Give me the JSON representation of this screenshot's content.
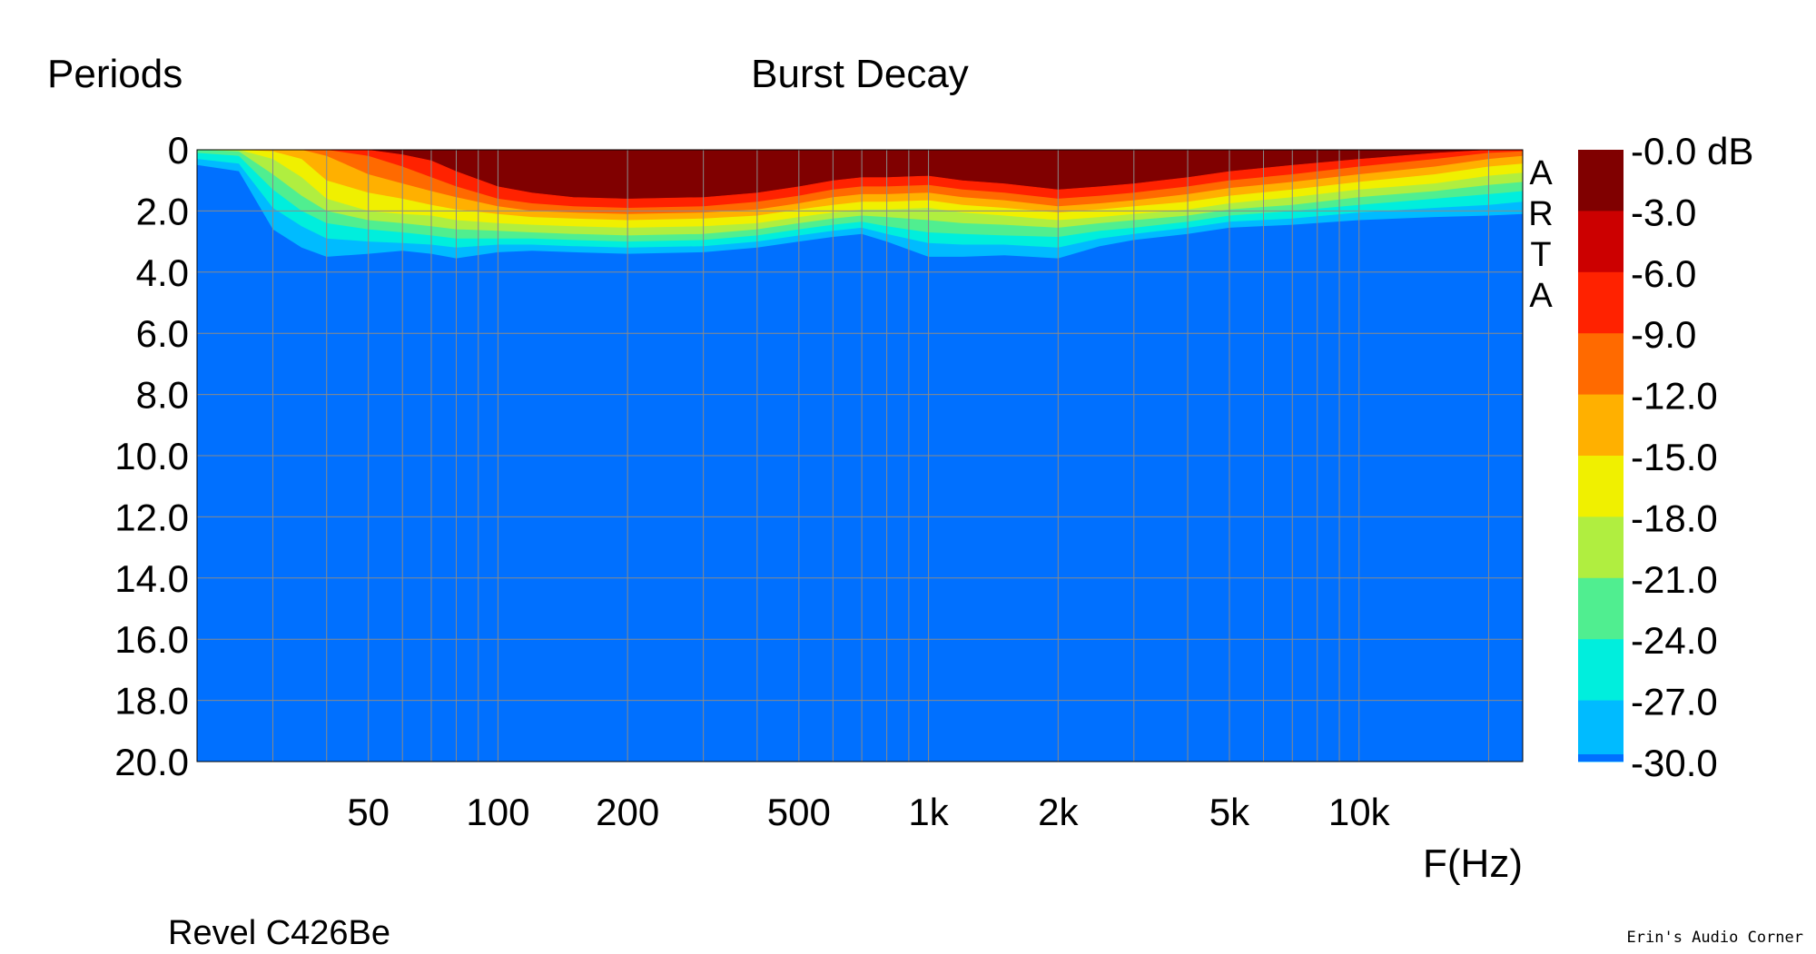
{
  "chart_data": {
    "type": "heatmap",
    "title": "Burst Decay",
    "ylabel": "Periods",
    "xlabel": "F(Hz)",
    "subtitle": "Revel C426Be",
    "watermark": "ARTA",
    "x_scale": "log",
    "xlim": [
      20,
      24000
    ],
    "ylim": [
      0,
      20
    ],
    "y_inverted": true,
    "grid": true,
    "x_ticks": [
      {
        "value": 50,
        "label": "50"
      },
      {
        "value": 100,
        "label": "100"
      },
      {
        "value": 200,
        "label": "200"
      },
      {
        "value": 500,
        "label": "500"
      },
      {
        "value": 1000,
        "label": "1k"
      },
      {
        "value": 2000,
        "label": "2k"
      },
      {
        "value": 5000,
        "label": "5k"
      },
      {
        "value": 10000,
        "label": "10k"
      }
    ],
    "y_ticks": [
      "0",
      "2.0",
      "4.0",
      "6.0",
      "8.0",
      "10.0",
      "12.0",
      "14.0",
      "16.0",
      "18.0",
      "20.0"
    ],
    "colorbar": {
      "unit": "dB",
      "labels": [
        "-0.0 dB",
        "-3.0",
        "-6.0",
        "-9.0",
        "-12.0",
        "-15.0",
        "-18.0",
        "-21.0",
        "-24.0",
        "-27.0",
        "-30.0"
      ],
      "levels": [
        0,
        -3,
        -6,
        -9,
        -12,
        -15,
        -18,
        -21,
        -24,
        -27,
        -30
      ],
      "colors": [
        "#800000",
        "#cc0000",
        "#ff2200",
        "#ff6a00",
        "#ffb000",
        "#f0f000",
        "#b0ee40",
        "#50ee90",
        "#00eedd",
        "#00bbff",
        "#0070ff"
      ]
    },
    "decay_boundaries": {
      "frequency_hz": [
        20,
        25,
        30,
        35,
        40,
        50,
        60,
        70,
        80,
        100,
        120,
        150,
        200,
        300,
        400,
        500,
        600,
        700,
        800,
        1000,
        1200,
        1500,
        2000,
        2500,
        3000,
        4000,
        5000,
        7000,
        10000,
        15000,
        20000,
        24000
      ],
      "periods_at_db": [
        {
          "db": -3,
          "periods": [
            0,
            0,
            0,
            0,
            0,
            0,
            0.15,
            0.35,
            0.7,
            1.2,
            1.4,
            1.55,
            1.6,
            1.55,
            1.4,
            1.2,
            1.0,
            0.9,
            0.9,
            0.85,
            1.0,
            1.1,
            1.3,
            1.2,
            1.1,
            0.9,
            0.7,
            0.5,
            0.3,
            0.1,
            0,
            0
          ]
        },
        {
          "db": -6,
          "periods": [
            0,
            0,
            0,
            0,
            0,
            0.2,
            0.55,
            0.9,
            1.2,
            1.6,
            1.75,
            1.85,
            1.9,
            1.85,
            1.7,
            1.5,
            1.3,
            1.2,
            1.2,
            1.15,
            1.3,
            1.4,
            1.6,
            1.5,
            1.4,
            1.2,
            1.0,
            0.8,
            0.55,
            0.3,
            0.1,
            0.05
          ]
        },
        {
          "db": -9,
          "periods": [
            0,
            0,
            0,
            0,
            0.2,
            0.8,
            1.1,
            1.35,
            1.55,
            1.85,
            2.0,
            2.05,
            2.1,
            2.05,
            1.95,
            1.75,
            1.55,
            1.45,
            1.45,
            1.4,
            1.55,
            1.65,
            1.85,
            1.75,
            1.65,
            1.45,
            1.25,
            1.05,
            0.8,
            0.55,
            0.3,
            0.2
          ]
        },
        {
          "db": -12,
          "periods": [
            0,
            0,
            0.05,
            0.3,
            1.0,
            1.4,
            1.6,
            1.8,
            1.95,
            2.1,
            2.2,
            2.25,
            2.3,
            2.25,
            2.15,
            1.95,
            1.8,
            1.7,
            1.7,
            1.65,
            1.8,
            1.9,
            2.05,
            1.95,
            1.85,
            1.7,
            1.5,
            1.3,
            1.05,
            0.8,
            0.55,
            0.45
          ]
        },
        {
          "db": -15,
          "periods": [
            0,
            0,
            0.3,
            0.9,
            1.6,
            2.0,
            2.1,
            2.15,
            2.3,
            2.4,
            2.45,
            2.5,
            2.55,
            2.5,
            2.4,
            2.2,
            2.05,
            1.95,
            1.95,
            1.9,
            2.05,
            2.15,
            2.3,
            2.2,
            2.1,
            1.95,
            1.75,
            1.55,
            1.3,
            1.1,
            0.85,
            0.75
          ]
        },
        {
          "db": -18,
          "periods": [
            0,
            0.05,
            0.8,
            1.5,
            2.0,
            2.3,
            2.4,
            2.5,
            2.6,
            2.65,
            2.7,
            2.75,
            2.8,
            2.75,
            2.6,
            2.4,
            2.25,
            2.15,
            2.2,
            2.3,
            2.4,
            2.45,
            2.55,
            2.4,
            2.3,
            2.15,
            1.95,
            1.8,
            1.55,
            1.35,
            1.15,
            1.05
          ]
        },
        {
          "db": -21,
          "periods": [
            0.1,
            0.2,
            1.3,
            2.0,
            2.4,
            2.6,
            2.7,
            2.8,
            2.9,
            2.9,
            2.9,
            2.95,
            3.0,
            2.95,
            2.8,
            2.6,
            2.45,
            2.35,
            2.5,
            2.7,
            2.75,
            2.8,
            2.85,
            2.65,
            2.55,
            2.35,
            2.15,
            2.0,
            1.8,
            1.6,
            1.45,
            1.35
          ]
        },
        {
          "db": -24,
          "periods": [
            0.3,
            0.45,
            1.9,
            2.5,
            2.9,
            3.0,
            3.05,
            3.1,
            3.2,
            3.1,
            3.1,
            3.15,
            3.2,
            3.15,
            3.0,
            2.8,
            2.65,
            2.55,
            2.75,
            3.05,
            3.1,
            3.1,
            3.2,
            2.9,
            2.75,
            2.55,
            2.35,
            2.25,
            2.05,
            1.9,
            1.8,
            1.7
          ]
        },
        {
          "db": -27,
          "periods": [
            0.5,
            0.7,
            2.6,
            3.2,
            3.5,
            3.4,
            3.3,
            3.4,
            3.55,
            3.35,
            3.3,
            3.35,
            3.4,
            3.35,
            3.2,
            3.0,
            2.85,
            2.75,
            3.0,
            3.5,
            3.5,
            3.45,
            3.55,
            3.15,
            2.95,
            2.75,
            2.55,
            2.45,
            2.3,
            2.2,
            2.15,
            2.1
          ]
        }
      ]
    }
  }
}
